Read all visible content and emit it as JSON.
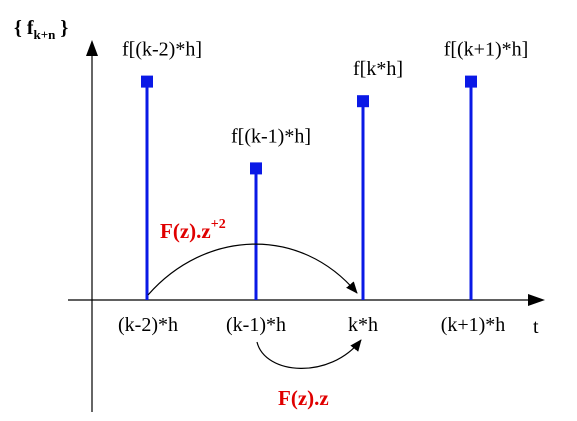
{
  "title": {
    "prefix": "{ f",
    "subscript": "k+n",
    "suffix": " }"
  },
  "axis": {
    "t_label": "t"
  },
  "colors": {
    "stem": "#0a19e6",
    "annotation": "#e00000",
    "axis": "#000000"
  },
  "samples": [
    {
      "x_label": "(k-2)*h",
      "value_label": "f[(k-2)*h]",
      "relative_height": 0.78
    },
    {
      "x_label": "(k-1)*h",
      "value_label": "f[(k-1)*h]",
      "relative_height": 0.47
    },
    {
      "x_label": "k*h",
      "value_label": "f[k*h]",
      "relative_height": 0.71
    },
    {
      "x_label": "(k+1)*h",
      "value_label": "f[(k+1)*h]",
      "relative_height": 0.78
    }
  ],
  "annotations": {
    "shift2": {
      "base": "F(z).z",
      "exponent": "+2"
    },
    "shift1": {
      "text": "F(z).z"
    }
  }
}
